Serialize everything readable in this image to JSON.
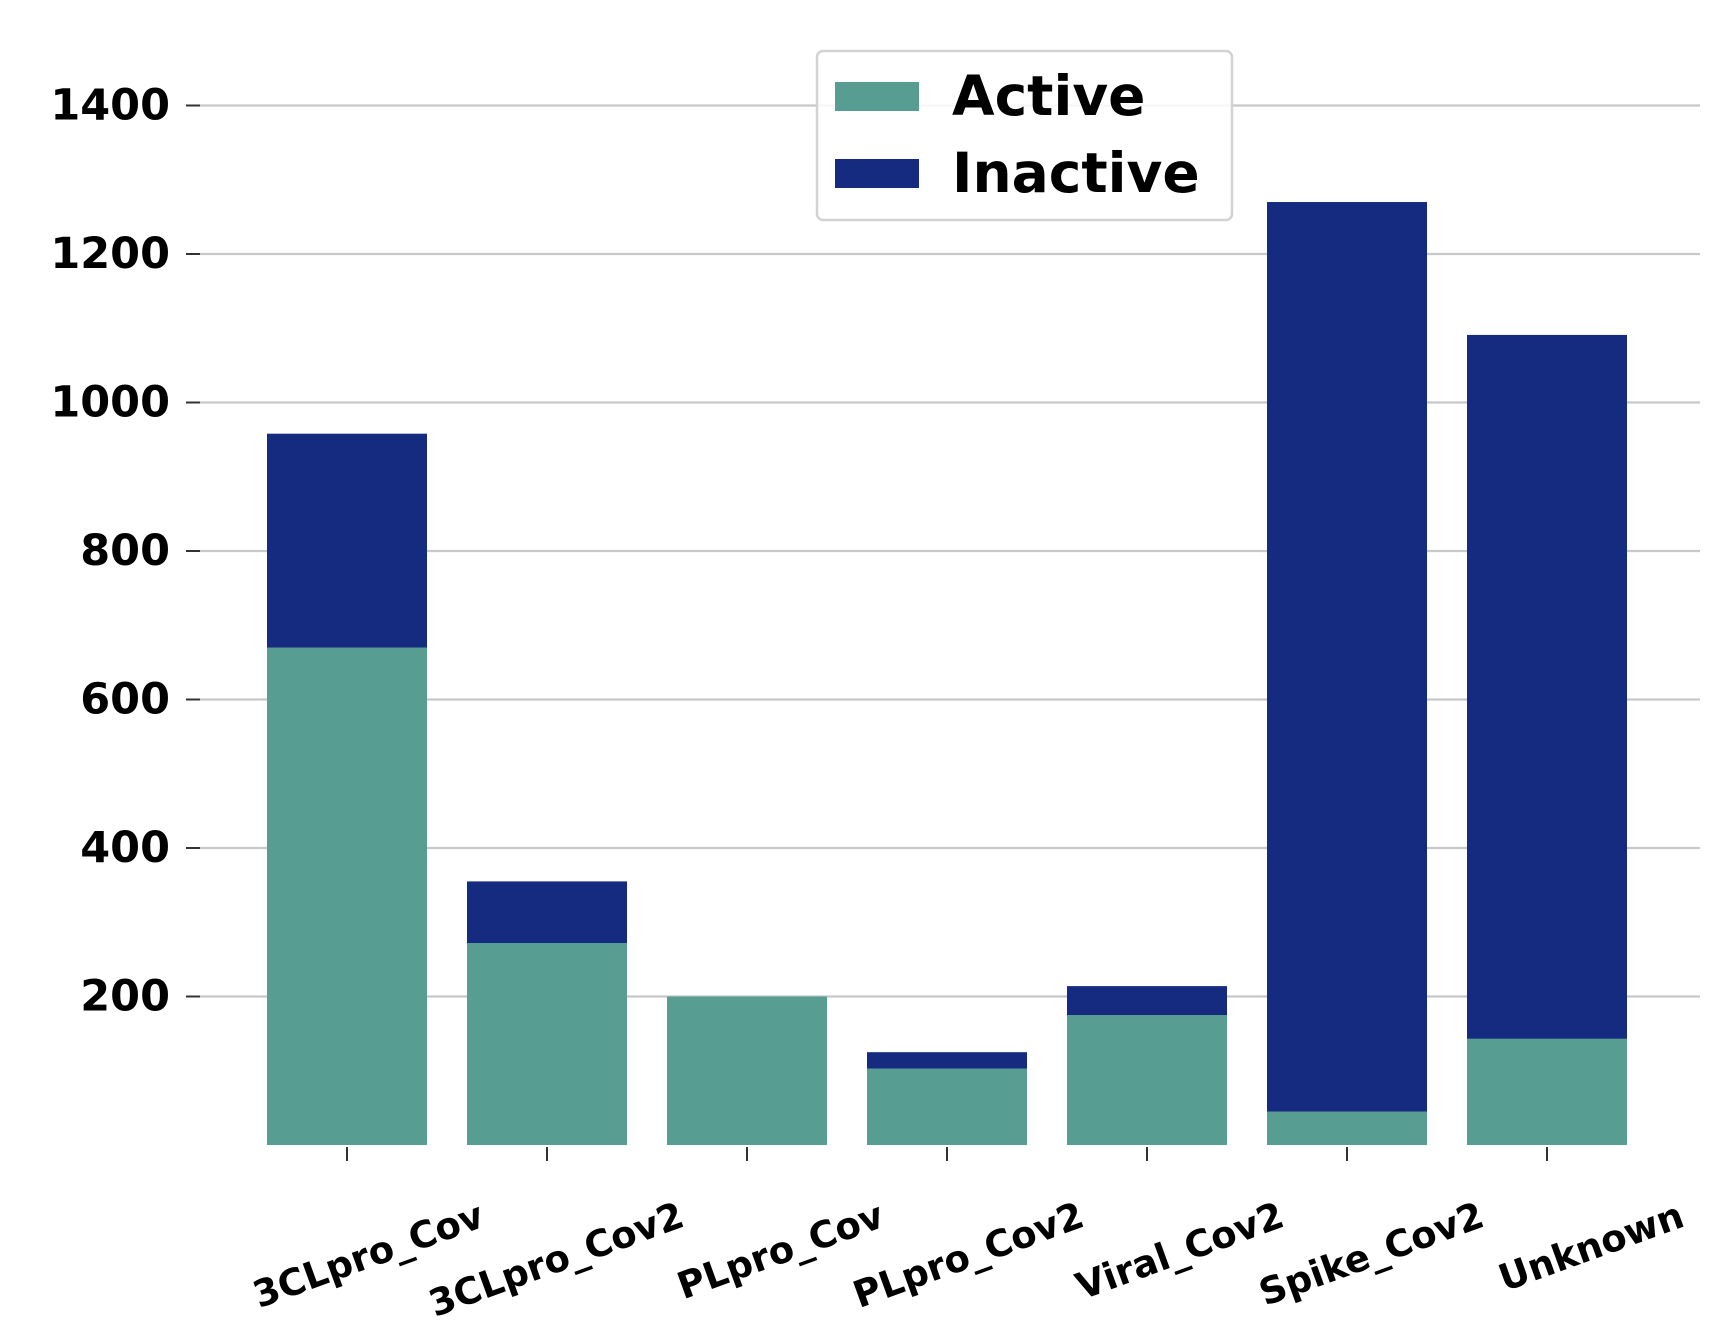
{
  "chart_data": {
    "type": "bar",
    "stacked": true,
    "categories": [
      "3CLpro_Cov",
      "3CLpro_Cov2",
      "PLpro_Cov",
      "PLpro_Cov2",
      "Viral_Cov2",
      "Spike_Cov2",
      "Unknown"
    ],
    "series": [
      {
        "name": "Active",
        "color": "#579d91",
        "values": [
          670,
          272,
          200,
          103,
          175,
          45,
          143
        ]
      },
      {
        "name": "Inactive",
        "color": "#152b7f",
        "values": [
          288,
          83,
          0,
          22,
          39,
          1225,
          948
        ]
      }
    ],
    "title": "",
    "xlabel": "",
    "ylabel": "",
    "ylim": [
      0,
      1480
    ],
    "yticks": [
      200,
      400,
      600,
      800,
      1000,
      1200,
      1400
    ],
    "grid": "horizontal",
    "legend_position": "top-center"
  }
}
